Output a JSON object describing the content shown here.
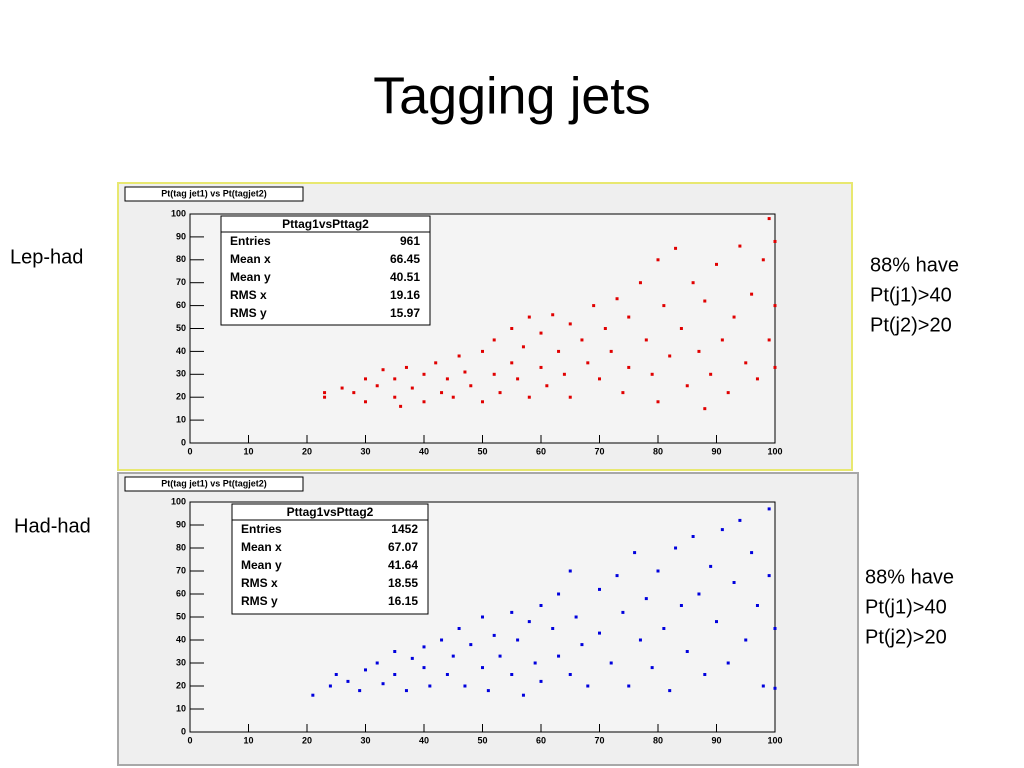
{
  "title": "Tagging jets",
  "chart_data": [
    {
      "type": "scatter",
      "title": "Pt(tag jet1) vs Pt(tagjet2)",
      "side_label": "Lep-had",
      "annotation": [
        "88% have",
        "Pt(j1)>40",
        "Pt(j2)>20"
      ],
      "color": "#e00000",
      "stats": {
        "title": "Pttag1vsPttag2",
        "labels": [
          "Entries",
          "Mean x",
          "Mean y",
          "RMS x",
          "RMS y"
        ],
        "values": [
          961,
          66.45,
          40.51,
          19.16,
          15.97
        ]
      },
      "xlim": [
        0,
        100
      ],
      "ylim": [
        0,
        100
      ],
      "xticks": [
        0,
        10,
        20,
        30,
        40,
        50,
        60,
        70,
        80,
        90,
        100
      ],
      "yticks": [
        0,
        10,
        20,
        30,
        40,
        50,
        60,
        70,
        80,
        90,
        100
      ],
      "x": [
        23,
        23,
        26,
        28,
        30,
        30,
        32,
        33,
        35,
        35,
        36,
        37,
        38,
        40,
        40,
        42,
        43,
        44,
        45,
        46,
        47,
        48,
        50,
        50,
        52,
        52,
        53,
        55,
        55,
        56,
        57,
        58,
        58,
        60,
        60,
        61,
        62,
        63,
        64,
        65,
        65,
        67,
        68,
        69,
        70,
        71,
        72,
        73,
        74,
        75,
        75,
        77,
        78,
        79,
        80,
        80,
        81,
        82,
        83,
        84,
        85,
        86,
        87,
        88,
        88,
        89,
        90,
        91,
        92,
        93,
        94,
        95,
        96,
        97,
        98,
        99,
        99,
        100,
        100,
        100
      ],
      "values": [
        20,
        22,
        24,
        22,
        28,
        18,
        25,
        32,
        20,
        28,
        16,
        33,
        24,
        30,
        18,
        35,
        22,
        28,
        20,
        38,
        31,
        25,
        40,
        18,
        45,
        30,
        22,
        50,
        35,
        28,
        42,
        55,
        20,
        48,
        33,
        25,
        56,
        40,
        30,
        52,
        20,
        45,
        35,
        60,
        28,
        50,
        40,
        63,
        22,
        55,
        33,
        70,
        45,
        30,
        80,
        18,
        60,
        38,
        85,
        50,
        25,
        70,
        40,
        15,
        62,
        30,
        78,
        45,
        22,
        55,
        86,
        35,
        65,
        28,
        80,
        98,
        45,
        88,
        60,
        33
      ]
    },
    {
      "type": "scatter",
      "title": "Pt(tag jet1) vs Pt(tagjet2)",
      "side_label": "Had-had",
      "annotation": [
        "88% have",
        "Pt(j1)>40",
        "Pt(j2)>20"
      ],
      "color": "#0000dd",
      "stats": {
        "title": "Pttag1vsPttag2",
        "labels": [
          "Entries",
          "Mean x",
          "Mean y",
          "RMS x",
          "RMS y"
        ],
        "values": [
          1452,
          67.07,
          41.64,
          18.55,
          16.15
        ]
      },
      "xlim": [
        0,
        100
      ],
      "ylim": [
        0,
        100
      ],
      "xticks": [
        0,
        10,
        20,
        30,
        40,
        50,
        60,
        70,
        80,
        90,
        100
      ],
      "yticks": [
        0,
        10,
        20,
        30,
        40,
        50,
        60,
        70,
        80,
        90,
        100
      ],
      "x": [
        21,
        24,
        25,
        27,
        29,
        30,
        32,
        33,
        35,
        35,
        37,
        38,
        40,
        40,
        41,
        43,
        44,
        45,
        46,
        47,
        48,
        50,
        50,
        51,
        52,
        53,
        55,
        55,
        56,
        57,
        58,
        59,
        60,
        60,
        62,
        63,
        63,
        65,
        65,
        66,
        67,
        68,
        70,
        70,
        72,
        73,
        74,
        75,
        76,
        77,
        78,
        79,
        80,
        81,
        82,
        83,
        84,
        85,
        86,
        87,
        88,
        89,
        90,
        91,
        92,
        93,
        94,
        95,
        96,
        97,
        98,
        99,
        99,
        100,
        100
      ],
      "values": [
        16,
        20,
        25,
        22,
        18,
        27,
        30,
        21,
        35,
        25,
        18,
        32,
        37,
        28,
        20,
        40,
        25,
        33,
        45,
        20,
        38,
        50,
        28,
        18,
        42,
        33,
        52,
        25,
        40,
        16,
        48,
        30,
        55,
        22,
        45,
        60,
        33,
        25,
        70,
        50,
        38,
        20,
        62,
        43,
        30,
        68,
        52,
        20,
        78,
        40,
        58,
        28,
        70,
        45,
        18,
        80,
        55,
        35,
        85,
        60,
        25,
        72,
        48,
        88,
        30,
        65,
        92,
        40,
        78,
        55,
        20,
        97,
        68,
        45,
        19
      ]
    }
  ]
}
